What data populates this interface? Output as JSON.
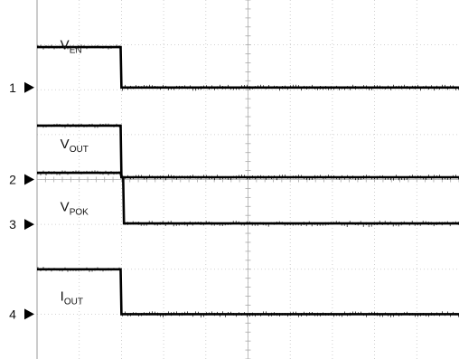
{
  "chart_data": {
    "type": "line",
    "title": "",
    "xlabel": "",
    "ylabel": "",
    "grid": true,
    "divisions": {
      "x": 10,
      "y": 8
    },
    "ylim": [
      0,
      8
    ],
    "step_at_division": 2.0,
    "channels": [
      {
        "number": "1",
        "marker_div": 1.95
      },
      {
        "number": "2",
        "marker_div": 4.0
      },
      {
        "number": "3",
        "marker_div": 5.0
      },
      {
        "number": "4",
        "marker_div": 7.0
      }
    ],
    "series": [
      {
        "name_main": "V",
        "name_sub": "EN",
        "channel": "1",
        "label_div": 1.0,
        "x": [
          0,
          1.98,
          2.0,
          10
        ],
        "y": [
          1.05,
          1.05,
          1.95,
          1.95
        ]
      },
      {
        "name_main": "V",
        "name_sub": "OUT",
        "channel": "2",
        "label_div": 3.2,
        "x": [
          0,
          1.98,
          2.0,
          10
        ],
        "y": [
          2.8,
          2.8,
          3.95,
          3.95
        ]
      },
      {
        "name_main": "V",
        "name_sub": "POK",
        "channel": "3",
        "label_div": 4.6,
        "x": [
          0,
          1.98,
          2.0,
          2.04,
          2.06,
          10
        ],
        "y": [
          3.85,
          3.85,
          3.95,
          3.95,
          4.98,
          4.98
        ]
      },
      {
        "name_main": "I",
        "name_sub": "OUT",
        "channel": "4",
        "label_div": 6.6,
        "x": [
          0,
          1.98,
          2.0,
          10
        ],
        "y": [
          6.0,
          6.0,
          7.0,
          7.0
        ]
      }
    ]
  }
}
